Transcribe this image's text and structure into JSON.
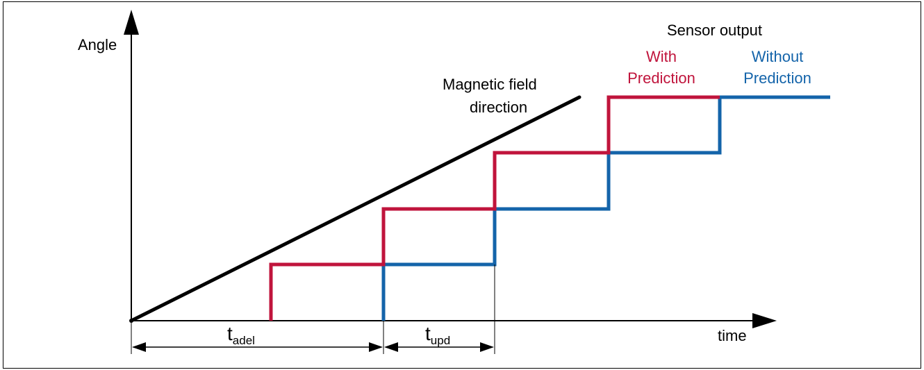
{
  "axes": {
    "y_label": "Angle",
    "x_label": "time"
  },
  "field_line": {
    "label_line1": "Magnetic field",
    "label_line2": "direction",
    "color": "#000000"
  },
  "sensor_output": {
    "title": "Sensor output",
    "with_prediction": {
      "line1": "With",
      "line2": "Prediction",
      "color": "#c0143c"
    },
    "without_prediction": {
      "line1": "Without",
      "line2": "Prediction",
      "color": "#1464aa"
    }
  },
  "intervals": {
    "adel": {
      "main": "t",
      "sub": "adel"
    },
    "upd": {
      "main": "t",
      "sub": "upd"
    }
  }
}
